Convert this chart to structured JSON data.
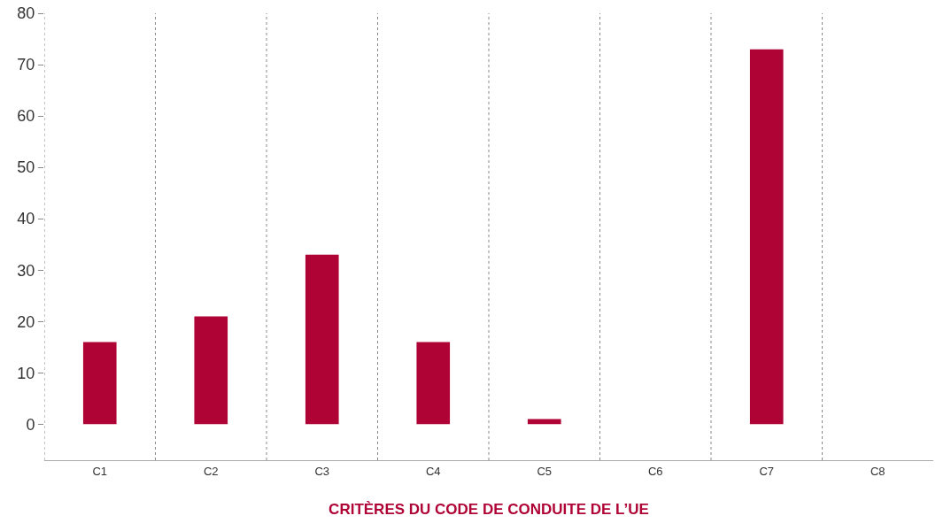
{
  "chart_data": {
    "type": "bar",
    "xlabel": "CRITÈRES DU CODE DE CONDUITE DE L’UE",
    "categories": [
      "C1",
      "C2",
      "C3",
      "C4",
      "C5",
      "C6",
      "C7",
      "C8"
    ],
    "values": [
      16,
      21,
      33,
      16,
      1,
      0,
      73,
      0
    ],
    "color": "#b00335",
    "ylim": [
      -7,
      80
    ],
    "yticks": [
      0,
      10,
      20,
      30,
      40,
      50,
      60,
      70,
      80
    ],
    "grid": "x"
  }
}
